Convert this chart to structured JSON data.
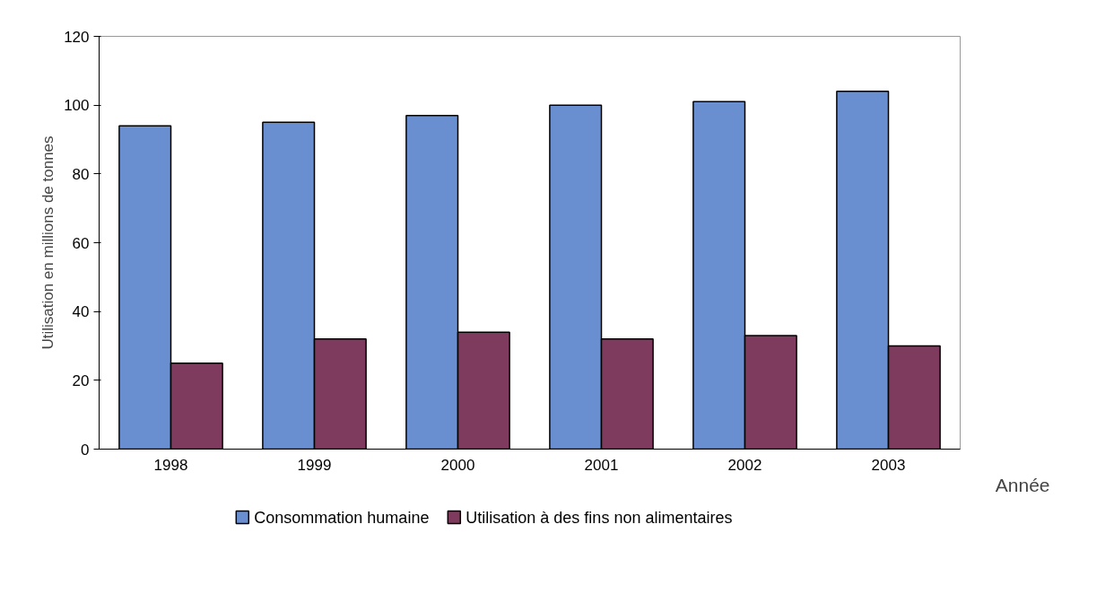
{
  "chart_data": {
    "type": "bar",
    "xlabel": "Année",
    "ylabel": "Utilisation en millions de tonnes",
    "categories": [
      "1998",
      "1999",
      "2000",
      "2001",
      "2002",
      "2003"
    ],
    "series": [
      {
        "name": "Consommation humaine",
        "color": "#6a8fd0",
        "values": [
          94,
          95,
          97,
          100,
          101,
          104
        ]
      },
      {
        "name": "Utilisation à des fins non alimentaires",
        "color": "#7f3b5e",
        "values": [
          25,
          32,
          34,
          32,
          33,
          30
        ]
      }
    ],
    "ylim": [
      0,
      120
    ],
    "yticks": [
      0,
      20,
      40,
      60,
      80,
      100,
      120
    ],
    "grid": false,
    "legend": "bottom"
  }
}
